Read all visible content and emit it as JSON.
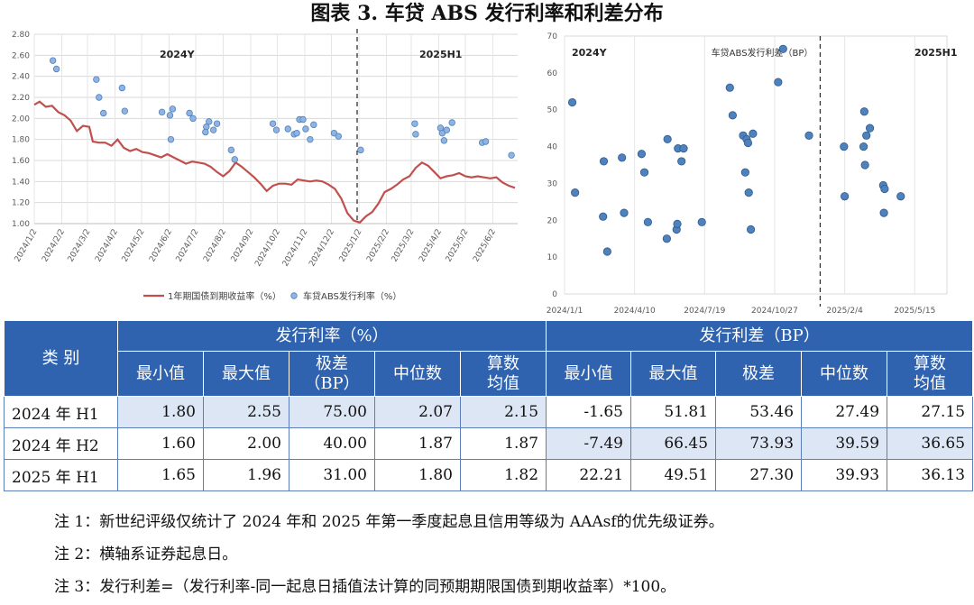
{
  "title": "图表 3. 车贷 ABS 发行利率和利差分布",
  "charts": {
    "left": {
      "period_labels": [
        "2024Y",
        "2025H1"
      ],
      "legend": [
        "1年期国债到期收益率（%）",
        "车贷ABS发行利率（%）"
      ]
    },
    "right": {
      "period_labels": [
        "2024Y",
        "2025H1"
      ],
      "legend": [
        "车贷ABS发行利差（BP）"
      ]
    }
  },
  "chart_data": [
    {
      "type": "line+scatter",
      "title": "",
      "x_type": "date",
      "x_ticks": [
        "2024/1/2",
        "2024/2/2",
        "2024/3/2",
        "2024/4/2",
        "2024/5/2",
        "2024/6/2",
        "2024/7/2",
        "2024/8/2",
        "2024/9/2",
        "2024/10/2",
        "2024/11/2",
        "2024/12/2",
        "2025/1/2",
        "2025/2/2",
        "2025/3/2",
        "2025/4/2",
        "2025/5/2",
        "2025/6/2"
      ],
      "ylim": [
        1.0,
        2.8
      ],
      "y_ticks": [
        "1.00",
        "1.20",
        "1.40",
        "1.60",
        "1.80",
        "2.00",
        "2.20",
        "2.40",
        "2.60",
        "2.80"
      ],
      "divider_x": "2024/12/31",
      "series": [
        {
          "name": "1年期国债到期收益率（%）",
          "kind": "line",
          "color": "#c0504d",
          "points": [
            [
              "2024/1/2",
              2.13
            ],
            [
              "2024/1/8",
              2.16
            ],
            [
              "2024/1/15",
              2.11
            ],
            [
              "2024/1/22",
              2.12
            ],
            [
              "2024/1/29",
              2.06
            ],
            [
              "2024/2/5",
              2.03
            ],
            [
              "2024/2/12",
              1.98
            ],
            [
              "2024/2/19",
              1.88
            ],
            [
              "2024/2/26",
              1.93
            ],
            [
              "2024/3/4",
              1.92
            ],
            [
              "2024/3/8",
              1.78
            ],
            [
              "2024/3/15",
              1.77
            ],
            [
              "2024/3/22",
              1.77
            ],
            [
              "2024/3/29",
              1.74
            ],
            [
              "2024/4/5",
              1.8
            ],
            [
              "2024/4/12",
              1.72
            ],
            [
              "2024/4/19",
              1.69
            ],
            [
              "2024/4/26",
              1.71
            ],
            [
              "2024/5/3",
              1.68
            ],
            [
              "2024/5/10",
              1.67
            ],
            [
              "2024/5/17",
              1.65
            ],
            [
              "2024/5/24",
              1.63
            ],
            [
              "2024/5/31",
              1.66
            ],
            [
              "2024/6/7",
              1.63
            ],
            [
              "2024/6/14",
              1.6
            ],
            [
              "2024/6/21",
              1.57
            ],
            [
              "2024/6/28",
              1.59
            ],
            [
              "2024/7/5",
              1.58
            ],
            [
              "2024/7/12",
              1.57
            ],
            [
              "2024/7/19",
              1.54
            ],
            [
              "2024/7/26",
              1.49
            ],
            [
              "2024/8/2",
              1.45
            ],
            [
              "2024/8/9",
              1.5
            ],
            [
              "2024/8/16",
              1.58
            ],
            [
              "2024/8/23",
              1.54
            ],
            [
              "2024/8/30",
              1.49
            ],
            [
              "2024/9/6",
              1.44
            ],
            [
              "2024/9/13",
              1.38
            ],
            [
              "2024/9/20",
              1.31
            ],
            [
              "2024/9/27",
              1.36
            ],
            [
              "2024/10/4",
              1.38
            ],
            [
              "2024/10/11",
              1.38
            ],
            [
              "2024/10/18",
              1.37
            ],
            [
              "2024/10/25",
              1.42
            ],
            [
              "2024/11/1",
              1.41
            ],
            [
              "2024/11/8",
              1.4
            ],
            [
              "2024/11/15",
              1.41
            ],
            [
              "2024/11/22",
              1.4
            ],
            [
              "2024/11/29",
              1.37
            ],
            [
              "2024/12/6",
              1.33
            ],
            [
              "2024/12/13",
              1.24
            ],
            [
              "2024/12/20",
              1.1
            ],
            [
              "2024/12/27",
              1.03
            ],
            [
              "2025/1/3",
              1.01
            ],
            [
              "2025/1/10",
              1.07
            ],
            [
              "2025/1/17",
              1.11
            ],
            [
              "2025/1/24",
              1.19
            ],
            [
              "2025/1/31",
              1.3
            ],
            [
              "2025/2/7",
              1.33
            ],
            [
              "2025/2/14",
              1.37
            ],
            [
              "2025/2/21",
              1.42
            ],
            [
              "2025/2/28",
              1.45
            ],
            [
              "2025/3/7",
              1.53
            ],
            [
              "2025/3/14",
              1.58
            ],
            [
              "2025/3/21",
              1.55
            ],
            [
              "2025/3/28",
              1.49
            ],
            [
              "2025/4/4",
              1.43
            ],
            [
              "2025/4/11",
              1.45
            ],
            [
              "2025/4/18",
              1.46
            ],
            [
              "2025/4/25",
              1.48
            ],
            [
              "2025/5/2",
              1.45
            ],
            [
              "2025/5/9",
              1.44
            ],
            [
              "2025/5/16",
              1.45
            ],
            [
              "2025/5/23",
              1.44
            ],
            [
              "2025/5/30",
              1.43
            ],
            [
              "2025/6/6",
              1.44
            ],
            [
              "2025/6/13",
              1.39
            ],
            [
              "2025/6/20",
              1.36
            ],
            [
              "2025/6/27",
              1.34
            ]
          ]
        },
        {
          "name": "车贷ABS发行利率（%）",
          "kind": "scatter",
          "color": "#8fb4e3",
          "points": [
            [
              "2024/1/23",
              2.55
            ],
            [
              "2024/1/27",
              2.47
            ],
            [
              "2024/3/12",
              2.37
            ],
            [
              "2024/3/15",
              2.2
            ],
            [
              "2024/3/20",
              2.05
            ],
            [
              "2024/4/10",
              2.29
            ],
            [
              "2024/4/13",
              2.07
            ],
            [
              "2024/5/25",
              2.06
            ],
            [
              "2024/6/3",
              2.03
            ],
            [
              "2024/6/6",
              2.09
            ],
            [
              "2024/6/4",
              1.8
            ],
            [
              "2024/6/25",
              2.05
            ],
            [
              "2024/6/29",
              2.0
            ],
            [
              "2024/7/14",
              1.92
            ],
            [
              "2024/7/17",
              1.97
            ],
            [
              "2024/7/22",
              1.89
            ],
            [
              "2024/7/26",
              1.95
            ],
            [
              "2024/7/13",
              1.87
            ],
            [
              "2024/8/11",
              1.7
            ],
            [
              "2024/8/15",
              1.61
            ],
            [
              "2024/9/27",
              1.95
            ],
            [
              "2024/10/1",
              1.89
            ],
            [
              "2024/10/14",
              1.9
            ],
            [
              "2024/10/21",
              1.85
            ],
            [
              "2024/10/24",
              1.86
            ],
            [
              "2024/10/27",
              1.99
            ],
            [
              "2024/10/31",
              1.99
            ],
            [
              "2024/11/3",
              1.9
            ],
            [
              "2024/11/8",
              1.8
            ],
            [
              "2024/11/12",
              1.94
            ],
            [
              "2024/12/5",
              1.86
            ],
            [
              "2024/12/10",
              1.83
            ],
            [
              "2025/1/4",
              1.7
            ],
            [
              "2025/3/6",
              1.95
            ],
            [
              "2025/3/7",
              1.85
            ],
            [
              "2025/4/4",
              1.91
            ],
            [
              "2025/4/6",
              1.86
            ],
            [
              "2025/4/8",
              1.79
            ],
            [
              "2025/4/11",
              1.89
            ],
            [
              "2025/4/17",
              1.96
            ],
            [
              "2025/5/21",
              1.77
            ],
            [
              "2025/5/25",
              1.78
            ],
            [
              "2025/6/23",
              1.65
            ]
          ]
        }
      ]
    },
    {
      "type": "scatter",
      "title": "车贷ABS发行利差（BP）",
      "x_type": "date",
      "x_ticks": [
        "2024/1/1",
        "2024/4/10",
        "2024/7/19",
        "2024/10/27",
        "2025/2/4",
        "2025/5/15"
      ],
      "ylim": [
        0,
        70
      ],
      "y_ticks": [
        "0",
        "10",
        "20",
        "30",
        "40",
        "50",
        "60",
        "70"
      ],
      "divider_x": "2024/12/31",
      "series": [
        {
          "name": "车贷ABS发行利差（BP）",
          "kind": "scatter",
          "color": "#4f81bd",
          "points": [
            [
              "2024/1/12",
              52
            ],
            [
              "2024/1/16",
              27.5
            ],
            [
              "2024/2/26",
              36
            ],
            [
              "2024/2/25",
              21
            ],
            [
              "2024/3/2",
              11.5
            ],
            [
              "2024/3/23",
              37
            ],
            [
              "2024/3/26",
              22
            ],
            [
              "2024/4/20",
              38
            ],
            [
              "2024/4/24",
              33
            ],
            [
              "2024/4/29",
              19.5
            ],
            [
              "2024/5/27",
              42
            ],
            [
              "2024/5/26",
              15
            ],
            [
              "2024/6/11",
              39.5
            ],
            [
              "2024/6/16",
              36
            ],
            [
              "2024/6/19",
              39.5
            ],
            [
              "2024/6/9",
              17.5
            ],
            [
              "2024/6/10",
              19
            ],
            [
              "2024/7/15",
              19.5
            ],
            [
              "2024/8/24",
              56
            ],
            [
              "2024/8/28",
              48.5
            ],
            [
              "2024/9/12",
              43
            ],
            [
              "2024/9/15",
              33
            ],
            [
              "2024/9/17",
              42
            ],
            [
              "2024/9/20",
              27.5
            ],
            [
              "2024/9/19",
              41
            ],
            [
              "2024/9/23",
              17.5
            ],
            [
              "2024/9/26",
              43.5
            ],
            [
              "2024/11/1",
              57.5
            ],
            [
              "2024/11/8",
              66.5
            ],
            [
              "2024/12/15",
              43
            ],
            [
              "2025/2/3",
              40
            ],
            [
              "2025/2/4",
              26.5
            ],
            [
              "2025/3/4",
              49.5
            ],
            [
              "2025/3/3",
              40
            ],
            [
              "2025/3/7",
              43
            ],
            [
              "2025/3/5",
              35
            ],
            [
              "2025/3/12",
              45
            ],
            [
              "2025/3/31",
              29.5
            ],
            [
              "2025/4/2",
              28.5
            ],
            [
              "2025/4/1",
              22
            ],
            [
              "2025/4/25",
              26.5
            ]
          ]
        }
      ]
    }
  ],
  "table": {
    "header": {
      "category": "类 别",
      "rate_group": "发行利率（%）",
      "spread_group": "发行利差（BP）",
      "rate_cols": [
        "最小值",
        "最大值",
        "极差\n（BP）",
        "中位数",
        "算数\n均值"
      ],
      "spread_cols": [
        "最小值",
        "最大值",
        "极差",
        "中位数",
        "算数\n均值"
      ]
    },
    "rows": [
      {
        "label": "2024 年 H1",
        "rate": [
          "1.80",
          "2.55",
          "75.00",
          "2.07",
          "2.15"
        ],
        "spread": [
          "-1.65",
          "51.81",
          "53.46",
          "27.49",
          "27.15"
        ]
      },
      {
        "label": "2024 年 H2",
        "rate": [
          "1.60",
          "2.00",
          "40.00",
          "1.87",
          "1.87"
        ],
        "spread": [
          "-7.49",
          "66.45",
          "73.93",
          "39.59",
          "36.65"
        ]
      },
      {
        "label": "2025 年 H1",
        "rate": [
          "1.65",
          "1.96",
          "31.00",
          "1.80",
          "1.82"
        ],
        "spread": [
          "22.21",
          "49.51",
          "27.30",
          "39.93",
          "36.13"
        ]
      }
    ]
  },
  "notes": [
    "注 1：新世纪评级仅统计了 2024 年和 2025 年第一季度起息且信用等级为 AAAsf的优先级证券。",
    "注 2：横轴系证券起息日。",
    "注 3：发行利差=（发行利率-同一起息日插值法计算的同预期期限国债到期收益率）*100。"
  ]
}
